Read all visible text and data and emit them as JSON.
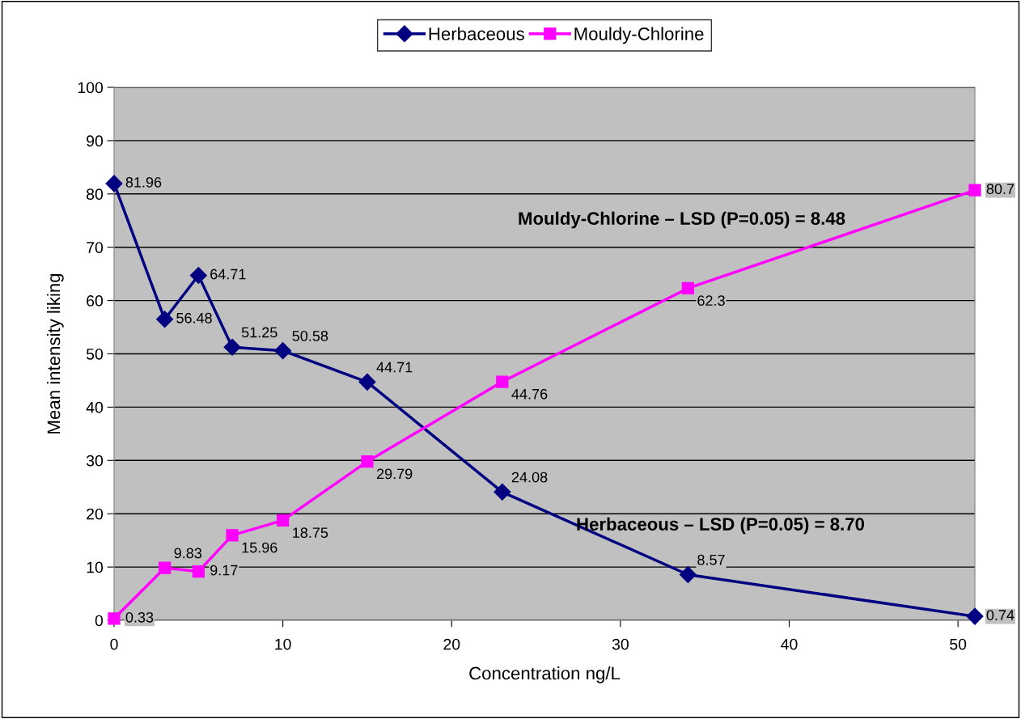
{
  "chart_data": {
    "type": "line",
    "xlabel": "Concentration ng/L",
    "ylabel": "Mean intensity liking",
    "x": [
      0,
      3,
      5,
      7,
      10,
      15,
      23,
      34,
      51
    ],
    "series": [
      {
        "name": "Herbaceous",
        "color": "#000080",
        "marker": "diamond",
        "values": [
          81.96,
          56.48,
          64.71,
          51.25,
          50.58,
          44.71,
          24.08,
          8.57,
          0.74
        ],
        "value_labels": [
          "81.96",
          "56.48",
          "64.71",
          "51.25",
          "50.58",
          "44.71",
          "24.08",
          "8.57",
          "0.74"
        ]
      },
      {
        "name": "Mouldy-Chlorine",
        "color": "#ff00ff",
        "marker": "square",
        "values": [
          0.33,
          9.83,
          9.17,
          15.96,
          18.75,
          29.79,
          44.76,
          62.3,
          80.7
        ],
        "value_labels": [
          "0.33",
          "9.83",
          "9.17",
          "15.96",
          "18.75",
          "29.79",
          "44.76",
          "62.3",
          "80.7"
        ]
      }
    ],
    "xlim": [
      0,
      51
    ],
    "xticks": [
      0,
      10,
      20,
      30,
      40,
      50
    ],
    "ylim": [
      0,
      100
    ],
    "yticks": [
      0,
      10,
      20,
      30,
      40,
      50,
      60,
      70,
      80,
      90,
      100
    ],
    "grid": "y",
    "legend": "top",
    "annotations": [
      "Mouldy-Chlorine – LSD (P=0.05) = 8.48",
      "Herbaceous – LSD (P=0.05) = 8.70"
    ]
  }
}
